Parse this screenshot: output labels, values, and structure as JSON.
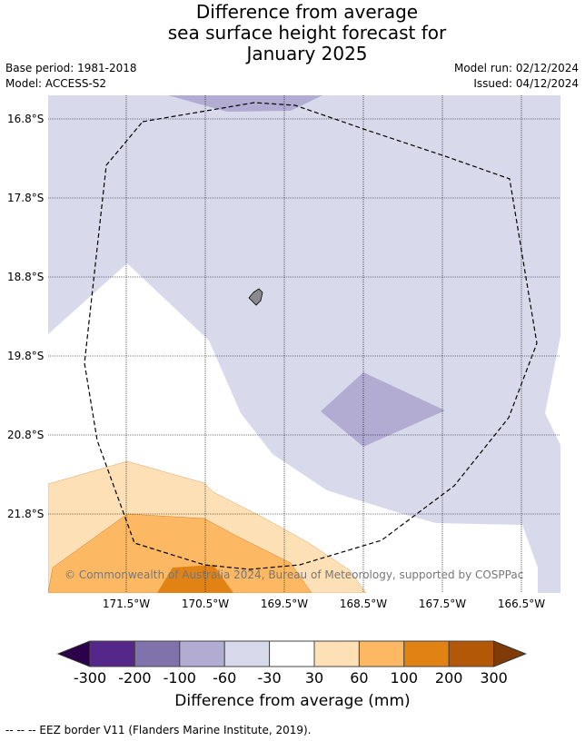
{
  "title": [
    "Difference from average",
    "sea surface height forecast for",
    "January 2025"
  ],
  "base_period": "Base period: 1981-2018",
  "model": "Model: ACCESS-S2",
  "model_run": "Model run: 02/12/2024",
  "issued": "Issued: 04/12/2024",
  "lat_labels": [
    "16.8°S",
    "17.8°S",
    "18.8°S",
    "19.8°S",
    "20.8°S",
    "21.8°S"
  ],
  "lon_labels": [
    "171.5°W",
    "170.5°W",
    "169.5°W",
    "168.5°W",
    "167.5°W",
    "166.5°W"
  ],
  "copyright": "© Commonwealth of Australia 2024, Bureau of Meteorology, supported by COSPPac",
  "colorbar": {
    "ticks": [
      "-300",
      "-200",
      "-100",
      "-60",
      "-30",
      "30",
      "60",
      "100",
      "200",
      "300"
    ],
    "colors": [
      "#2d004b",
      "#542788",
      "#8073ac",
      "#b2abd2",
      "#d8daeb",
      "#ffffff",
      "#fee0b6",
      "#fdb863",
      "#e08214",
      "#b35806",
      "#7f3b08"
    ],
    "label": "Difference from average (mm)"
  },
  "footnote": "--  --  -- EEZ border V11 (Flanders Marine Institute, 2019)."
}
